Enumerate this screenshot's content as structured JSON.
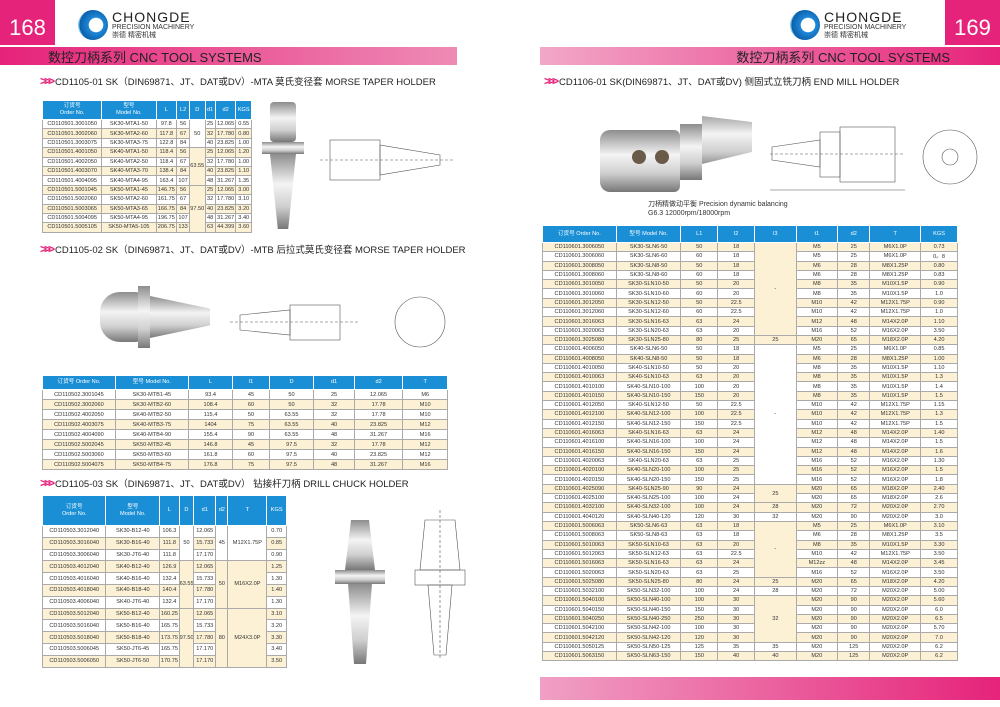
{
  "left_page": {
    "number": "168",
    "band_title": "数控刀柄系列  CNC TOOL  SYSTEMS",
    "logo": {
      "brand": "CHONGDE",
      "sub": "PRECISION MACHINERY",
      "cn": "崇德 精密机械"
    }
  },
  "right_page": {
    "number": "169",
    "band_title": "数控刀柄系列  CNC TOOL  SYSTEMS",
    "logo": {
      "brand": "CHONGDE",
      "sub": "PRECISION MACHINERY",
      "cn": "崇德 精密机械"
    },
    "caption_line1": "刀柄精做动平衡 Precision dynamic balancing",
    "caption_line2": "G6.3 12000rpm/18000rpm"
  },
  "colors": {
    "accent": "#e6237a",
    "header_blue": "#1a8fd6",
    "row_alt": "#fcf1d4"
  },
  "sections": {
    "s1": "CD1105-01 SK（DIN69871、JT、DAT或DV）-MTA  莫氏变径套    MORSE TAPER HOLDER",
    "s2": "CD1105-02 SK（DIN69871、JT、DAT或DV）-MTB  后拉式莫氏变径套  MORSE TAPER HOLDER",
    "s3": "CD1105-03 SK（DIN69871、JT、DAT或DV）   钻接杆刀柄  DRILL CHUCK HOLDER",
    "s4": "CD1106-01 SK(DIN69871、JT、DAT或DV)  侧固式立铣刀柄  END MILL HOLDER"
  },
  "tables": {
    "t1": {
      "columns": [
        "订货号\nOrder No.",
        "型号\nModel No.",
        "L",
        "L2",
        "D",
        "d1",
        "d2",
        "KGS"
      ],
      "rows": [
        [
          "CD110501.3001050",
          "SK30-MTA1-50",
          "97.8",
          "56",
          "50",
          "25",
          "12.065",
          "0.55"
        ],
        [
          "CD110501.3002060",
          "SK30-MTA2-60",
          "117.8",
          "67",
          null,
          "32",
          "17.780",
          "0.80"
        ],
        [
          "CD110501.3003075",
          "SK30-MTA3-75",
          "122.8",
          "84",
          null,
          "40",
          "23.825",
          "1.00"
        ],
        [
          "CD110501.4001050",
          "SK40-MTA1-50",
          "118.4",
          "56",
          "63.55",
          "25",
          "12.065",
          "1.20"
        ],
        [
          "CD110501.4002050",
          "SK40-MTA2-50",
          "118.4",
          "67",
          null,
          "32",
          "17.780",
          "1.00"
        ],
        [
          "CD110501.4003070",
          "SK40-MTA3-70",
          "138.4",
          "84",
          null,
          "40",
          "23.825",
          "1.10"
        ],
        [
          "CD110501.4004095",
          "SK40-MTA4-95",
          "163.4",
          "107",
          null,
          "48",
          "31.267",
          "1.35"
        ],
        [
          "CD110501.5001045",
          "SK50-MTA1-45",
          "146.75",
          "56",
          "97.50",
          "25",
          "12.065",
          "3.00"
        ],
        [
          "CD110501.5002060",
          "SK50-MTA2-60",
          "161.75",
          "67",
          null,
          "32",
          "17.780",
          "3.10"
        ],
        [
          "CD110501.5003065",
          "SK50-MTA3-65",
          "166.75",
          "84",
          null,
          "40",
          "23.825",
          "3.20"
        ],
        [
          "CD110501.5004095",
          "SK50-MTA4-95",
          "196.75",
          "107",
          null,
          "48",
          "31.267",
          "3.40"
        ],
        [
          "CD110501.5005105",
          "SK50-MTA5-105",
          "206.75",
          "133",
          null,
          "63",
          "44.399",
          "3.60"
        ]
      ]
    },
    "t2": {
      "columns": [
        "订货号 Order No.",
        "型号 Model No.",
        "L",
        "l1",
        "D",
        "d1",
        "d2",
        "T"
      ],
      "rows": [
        [
          "CD110502.3001045",
          "SK30-MTB1-45",
          "93.4",
          "45",
          "50",
          "25",
          "12.065",
          "M6"
        ],
        [
          "CD110502.3002060",
          "SK30-MTB2-60",
          "108.4",
          "60",
          "50",
          "32",
          "17.78",
          "M10"
        ],
        [
          "CD110502.4002050",
          "SK40-MTB2-50",
          "115.4",
          "50",
          "63.55",
          "32",
          "17.78",
          "M10"
        ],
        [
          "CD110502.4003075",
          "SK40-MTB3-75",
          "1404",
          "75",
          "63.55",
          "40",
          "23.825",
          "M12"
        ],
        [
          "CD110502.4004090",
          "SK40-MTB4-90",
          "155.4",
          "90",
          "63.55",
          "48",
          "31.267",
          "M16"
        ],
        [
          "CD110502.5002045",
          "SK50-MTB2-45",
          "146.8",
          "45",
          "97.5",
          "32",
          "17.78",
          "M12"
        ],
        [
          "CD110502.5003060",
          "SK50-MTB3-60",
          "161.8",
          "60",
          "97.5",
          "40",
          "23.825",
          "M12"
        ],
        [
          "CD110502.5004075",
          "SK50-MTB4-75",
          "176.8",
          "75",
          "97.5",
          "48",
          "31.267",
          "M16"
        ]
      ]
    },
    "t3": {
      "columns": [
        "订货号\nOrder No.",
        "型号\nModel No.",
        "L",
        "D",
        "d1",
        "d2",
        "T",
        "KGS"
      ],
      "rows": [
        [
          "CD110503.3012040",
          "SK30-B12-40",
          "106.3",
          "50",
          "12.065",
          "45",
          "M12X1.75P",
          "0.70"
        ],
        [
          "CD110503.3016040",
          "SK30-B16-40",
          "111.8",
          null,
          "15.733",
          null,
          null,
          "0.85"
        ],
        [
          "CD110503.3006040",
          "SK30-JT6-40",
          "111.8",
          null,
          "17.170",
          null,
          null,
          "0.90"
        ],
        [
          "CD110503.4012040",
          "SK40-B12-40",
          "126.9",
          "63.55",
          "12.065",
          "50",
          "M16X2.0P",
          "1.25"
        ],
        [
          "CD110503.4016040",
          "SK40-B16-40",
          "132.4",
          null,
          "15.733",
          null,
          null,
          "1.30"
        ],
        [
          "CD110503.4018040",
          "SK40-B18-40",
          "140.4",
          null,
          "17.780",
          null,
          null,
          "1.40"
        ],
        [
          "CD110503.4006040",
          "SK40-JT6-40",
          "132.4",
          null,
          "17.170",
          null,
          null,
          "1.30"
        ],
        [
          "CD110503.5012040",
          "SK50-B12-40",
          "160.25",
          "97.50",
          "12.065",
          "80",
          "M24X3.0P",
          "3.10"
        ],
        [
          "CD110503.5016040",
          "SK50-B16-40",
          "165.75",
          null,
          "15.733",
          null,
          null,
          "3.20"
        ],
        [
          "CD110503.5018040",
          "SK50-B18-40",
          "173.75",
          null,
          "17.780",
          null,
          null,
          "3.30"
        ],
        [
          "CD110503.5006045",
          "SK50-JT6-45",
          "165.75",
          null,
          "17.170",
          null,
          null,
          "3.40"
        ],
        [
          "CD110503.5006050",
          "SK50-JT6-50",
          "170.75",
          null,
          "17.170",
          null,
          null,
          "3.50"
        ]
      ]
    },
    "t4": {
      "columns": [
        "订货号 Order No.",
        "型号 Model No.",
        "L1",
        "l2",
        "l3",
        "t1",
        "d2",
        "T",
        "KGS"
      ],
      "rows": [
        [
          "CD110601.3006050",
          "SK30-SLN6-50",
          "50",
          "18",
          "-",
          "M5",
          "25",
          "M6X1.0P",
          "0.73"
        ],
        [
          "CD110601.3006060",
          "SK30-SLN6-60",
          "60",
          "18",
          null,
          "M5",
          "25",
          "M6X1.0P",
          "0。8"
        ],
        [
          "CD110601.3008050",
          "SK30-SLN8-50",
          "50",
          "18",
          null,
          "M6",
          "28",
          "M8X1.25P",
          "0.80"
        ],
        [
          "CD110601.3008060",
          "SK30-SLN8-60",
          "60",
          "18",
          null,
          "M6",
          "28",
          "M8X1.25P",
          "0.83"
        ],
        [
          "CD110601.3010050",
          "SK30-SLN10-50",
          "50",
          "20",
          null,
          "M8",
          "35",
          "M10X1.5P",
          "0.90"
        ],
        [
          "CD110601.3010060",
          "SK30-SLN10-60",
          "60",
          "20",
          null,
          "M8",
          "35",
          "M10X1.5P",
          "1.0"
        ],
        [
          "CD110601.3012050",
          "SK30-SLN12-50",
          "50",
          "22.5",
          null,
          "M10",
          "42",
          "M12X1.75P",
          "0.90"
        ],
        [
          "CD110601.3012060",
          "SK30-SLN12-60",
          "60",
          "22.5",
          null,
          "M10",
          "42",
          "M12X1.75P",
          "1.0"
        ],
        [
          "CD110601.3016063",
          "SK30-SLN16-63",
          "63",
          "24",
          null,
          "M12",
          "48",
          "M14X2.0P",
          "1.10"
        ],
        [
          "CD110601.3020063",
          "SK30-SLN20-63",
          "63",
          "20",
          null,
          "M16",
          "52",
          "M16X2.0P",
          "3.50"
        ],
        [
          "CD110601.3025080",
          "SK30-SLN25-80",
          "80",
          "25",
          "25",
          "M20",
          "65",
          "M18X2.0P",
          "4.20"
        ],
        [
          "CD110601.4006050",
          "SK40-SLN6-50",
          "50",
          "18",
          "-",
          "M5",
          "25",
          "M6X1.0P",
          "0.85"
        ],
        [
          "CD110601.4008050",
          "SK40-SLN8-50",
          "50",
          "18",
          null,
          "M6",
          "28",
          "M8X1.25P",
          "1.00"
        ],
        [
          "CD110601.4010050",
          "SK40-SLN10-50",
          "50",
          "20",
          null,
          "M8",
          "35",
          "M10X1.5P",
          "1.10"
        ],
        [
          "CD110601.4010063",
          "SK40-SLN10-63",
          "63",
          "20",
          null,
          "M8",
          "35",
          "M10X1.5P",
          "1.3"
        ],
        [
          "CD110601.4010100",
          "SK40-SLN10-100",
          "100",
          "20",
          null,
          "M8",
          "35",
          "M10X1.5P",
          "1.4"
        ],
        [
          "CD110601.4010150",
          "SK40-SLN10-150",
          "150",
          "20",
          null,
          "M8",
          "35",
          "M10X1.5P",
          "1.5"
        ],
        [
          "CD110601.4012050",
          "SK40-SLN12-50",
          "50",
          "22.5",
          null,
          "M10",
          "42",
          "M12X1.75P",
          "1.15"
        ],
        [
          "CD110601.4012100",
          "SK40-SLN12-100",
          "100",
          "22.5",
          null,
          "M10",
          "42",
          "M12X1.75P",
          "1.3"
        ],
        [
          "CD110601.4012150",
          "SK40-SLN12-150",
          "150",
          "22.5",
          null,
          "M10",
          "42",
          "M12X1.75P",
          "1.5"
        ],
        [
          "CD110601.4016063",
          "SK40-SLN16-63",
          "63",
          "24",
          null,
          "M12",
          "48",
          "M14X2.0P",
          "1.40"
        ],
        [
          "CD110601.4016100",
          "SK40-SLN16-100",
          "100",
          "24",
          null,
          "M12",
          "48",
          "M14X2.0P",
          "1.5"
        ],
        [
          "CD110601.4016150",
          "SK40-SLN16-150",
          "150",
          "24",
          null,
          "M12",
          "48",
          "M14X2.0P",
          "1.6"
        ],
        [
          "CD110601.4020063",
          "SK40-SLN20-63",
          "63",
          "25",
          null,
          "M16",
          "52",
          "M16X2.0P",
          "1.30"
        ],
        [
          "CD110601.4020100",
          "SK40-SLN20-100",
          "100",
          "25",
          null,
          "M16",
          "52",
          "M16X2.0P",
          "1.5"
        ],
        [
          "CD110601.4020150",
          "SK40-SLN20-150",
          "150",
          "25",
          null,
          "M16",
          "52",
          "M16X2.0P",
          "1.8"
        ],
        [
          "CD110601.4025090",
          "SK40-SLN25-90",
          "90",
          "24",
          "25",
          "M20",
          "65",
          "M18X2.0P",
          "2.40"
        ],
        [
          "CD110601.4025100",
          "SK40-SLN25-100",
          "100",
          "24",
          null,
          "M20",
          "65",
          "M18X2.0P",
          "2.6"
        ],
        [
          "CD110601.4032100",
          "SK40-SLN32-100",
          "100",
          "24",
          "28",
          "M20",
          "72",
          "M20X2.0P",
          "2.70"
        ],
        [
          "CD110601.4040120",
          "SK40-SLN40-120",
          "120",
          "30",
          "32",
          "M20",
          "90",
          "M20X2.0P",
          "3.0"
        ],
        [
          "CD110601.5006063",
          "SK50-SLN6-63",
          "63",
          "18",
          "-",
          "M5",
          "25",
          "M6X1.0P",
          "3.10"
        ],
        [
          "CD110601.5008063",
          "SK50-SLN8-63",
          "63",
          "18",
          null,
          "M6",
          "28",
          "M8X1.25P",
          "3.5"
        ],
        [
          "CD110601.5010063",
          "SK50-SLN10-63",
          "63",
          "20",
          null,
          "M8",
          "35",
          "M10X1.5P",
          "3.30"
        ],
        [
          "CD110601.5012063",
          "SK50-SLN12-63",
          "63",
          "22.5",
          null,
          "M10",
          "42",
          "M12X1.75P",
          "3.50"
        ],
        [
          "CD110601.5016063",
          "SK50-SLN16-63",
          "63",
          "24",
          null,
          "M12zz",
          "48",
          "M14X2.0P",
          "3.45"
        ],
        [
          "CD110601.5020063",
          "SK50-SLN20-63",
          "63",
          "25",
          null,
          "M16",
          "52",
          "M16X2.0P",
          "3.50"
        ],
        [
          "CD110601.5025080",
          "SK50-SLN25-80",
          "80",
          "24",
          "25",
          "M20",
          "65",
          "M18X2.0P",
          "4.20"
        ],
        [
          "CD110601.5032100",
          "SK50-SLN32-100",
          "100",
          "24",
          "28",
          "M20",
          "72",
          "M20X2.0P",
          "5.00"
        ],
        [
          "CD110601.5040100",
          "SK50-SLN40-100",
          "100",
          "30",
          "32",
          "M20",
          "90",
          "M20X2.0P",
          "5.60"
        ],
        [
          "CD110601.5040150",
          "SK50-SLN40-150",
          "150",
          "30",
          null,
          "M20",
          "90",
          "M20X2.0P",
          "6.0"
        ],
        [
          "CD110601.5040250",
          "SK50-SLN40-250",
          "250",
          "30",
          null,
          "M20",
          "90",
          "M20X2.0P",
          "6.5"
        ],
        [
          "CD110601.5042100",
          "SK50-SLN42-100",
          "100",
          "30",
          null,
          "M20",
          "90",
          "M20X2.0P",
          "5.70"
        ],
        [
          "CD110601.5042120",
          "SK50-SLN42-120",
          "120",
          "30",
          null,
          "M20",
          "90",
          "M20X2.0P",
          "7.0"
        ],
        [
          "CD110601.5050125",
          "SK50-SLN50-125",
          "125",
          "35",
          "35",
          "M20",
          "125",
          "M20X2.0P",
          "6.2"
        ],
        [
          "CD110601.5063150",
          "SK50-SLN63-150",
          "150",
          "40",
          "40",
          "M20",
          "125",
          "M20X2.0P",
          "6.2"
        ]
      ]
    }
  }
}
